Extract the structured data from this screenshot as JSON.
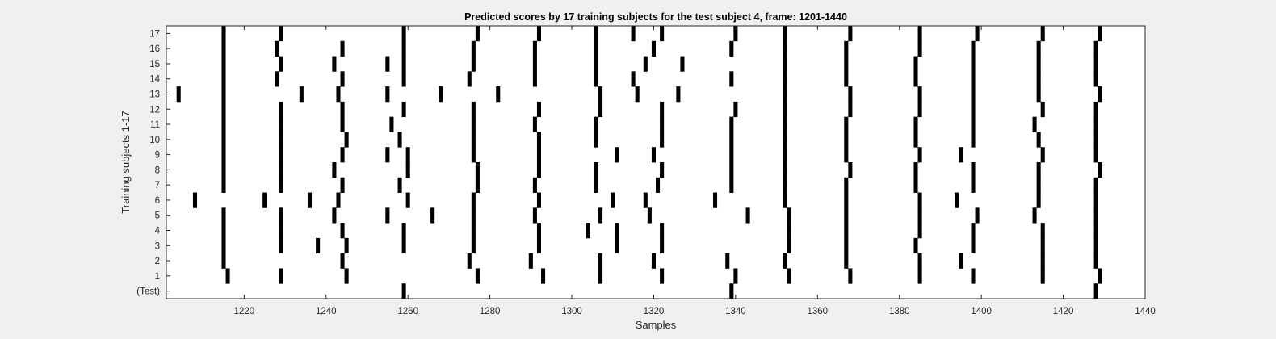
{
  "chart_data": {
    "type": "raster",
    "title": "Predicted scores by 17 training subjects for the test subject 4, frame: 1201-1440",
    "xlabel": "Samples",
    "ylabel": "Training subjects 1-17",
    "xlim": [
      1201,
      1440
    ],
    "x_ticks": [
      1220,
      1240,
      1260,
      1280,
      1300,
      1320,
      1340,
      1360,
      1380,
      1400,
      1420,
      1440
    ],
    "x_tick_labels": [
      "1220",
      "1240",
      "1260",
      "1280",
      "1300",
      "1320",
      "1340",
      "1360",
      "1380",
      "1400",
      "1420",
      "1440"
    ],
    "grid": false,
    "colors": {
      "background": "#ffffff",
      "marks": "#000000",
      "figure": "#f0f0f0"
    },
    "rows": [
      {
        "label": "(Test)",
        "x": [
          1259,
          1339,
          1428
        ]
      },
      {
        "label": "1",
        "x": [
          1216,
          1229,
          1245,
          1277,
          1293,
          1307,
          1322,
          1340,
          1353,
          1368,
          1385,
          1398,
          1415,
          1429
        ]
      },
      {
        "label": "2",
        "x": [
          1215,
          1244,
          1275,
          1290,
          1307,
          1320,
          1338,
          1352,
          1367,
          1385,
          1395,
          1415,
          1428
        ]
      },
      {
        "label": "3",
        "x": [
          1215,
          1229,
          1238,
          1245,
          1259,
          1276,
          1292,
          1311,
          1322,
          1353,
          1367,
          1384,
          1398,
          1415,
          1428
        ]
      },
      {
        "label": "4",
        "x": [
          1215,
          1229,
          1244,
          1259,
          1276,
          1292,
          1304,
          1311,
          1322,
          1353,
          1367,
          1385,
          1398,
          1415,
          1428
        ]
      },
      {
        "label": "5",
        "x": [
          1215,
          1229,
          1242,
          1255,
          1266,
          1276,
          1291,
          1307,
          1319,
          1343,
          1353,
          1367,
          1385,
          1399,
          1413,
          1428
        ]
      },
      {
        "label": "6",
        "x": [
          1208,
          1225,
          1236,
          1243,
          1260,
          1276,
          1292,
          1310,
          1318,
          1335,
          1352,
          1367,
          1385,
          1394,
          1414,
          1428
        ]
      },
      {
        "label": "7",
        "x": [
          1215,
          1229,
          1244,
          1258,
          1277,
          1291,
          1306,
          1321,
          1339,
          1352,
          1367,
          1384,
          1398,
          1414,
          1428
        ]
      },
      {
        "label": "8",
        "x": [
          1215,
          1229,
          1242,
          1260,
          1277,
          1292,
          1306,
          1322,
          1339,
          1352,
          1368,
          1384,
          1398,
          1414,
          1429
        ]
      },
      {
        "label": "9",
        "x": [
          1215,
          1229,
          1244,
          1255,
          1260,
          1276,
          1292,
          1311,
          1320,
          1339,
          1352,
          1367,
          1385,
          1395,
          1415,
          1428
        ]
      },
      {
        "label": "10",
        "x": [
          1215,
          1229,
          1245,
          1258,
          1276,
          1292,
          1306,
          1322,
          1339,
          1352,
          1367,
          1384,
          1398,
          1414,
          1428
        ]
      },
      {
        "label": "11",
        "x": [
          1215,
          1229,
          1244,
          1256,
          1276,
          1291,
          1306,
          1322,
          1339,
          1352,
          1367,
          1384,
          1398,
          1413,
          1428
        ]
      },
      {
        "label": "12",
        "x": [
          1215,
          1229,
          1244,
          1259,
          1276,
          1292,
          1307,
          1322,
          1340,
          1352,
          1368,
          1385,
          1398,
          1415,
          1428
        ]
      },
      {
        "label": "13",
        "x": [
          1204,
          1215,
          1234,
          1243,
          1255,
          1268,
          1282,
          1307,
          1316,
          1326,
          1352,
          1368,
          1385,
          1398,
          1414,
          1429
        ]
      },
      {
        "label": "14",
        "x": [
          1215,
          1228,
          1244,
          1259,
          1275,
          1291,
          1306,
          1315,
          1339,
          1352,
          1367,
          1384,
          1398,
          1414,
          1428
        ]
      },
      {
        "label": "15",
        "x": [
          1215,
          1229,
          1242,
          1255,
          1259,
          1276,
          1291,
          1306,
          1318,
          1327,
          1352,
          1367,
          1384,
          1398,
          1414,
          1428
        ]
      },
      {
        "label": "16",
        "x": [
          1215,
          1228,
          1244,
          1259,
          1276,
          1291,
          1306,
          1320,
          1339,
          1352,
          1367,
          1385,
          1398,
          1414,
          1428
        ]
      },
      {
        "label": "17",
        "x": [
          1215,
          1229,
          1259,
          1277,
          1292,
          1306,
          1315,
          1322,
          1340,
          1352,
          1368,
          1385,
          1399,
          1415,
          1429
        ]
      }
    ]
  }
}
